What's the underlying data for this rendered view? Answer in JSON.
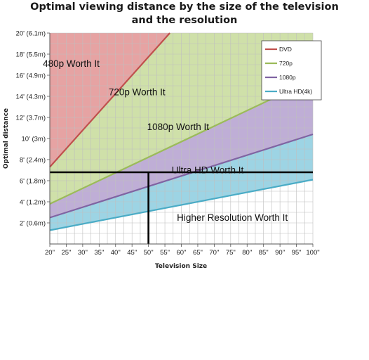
{
  "chart_data": {
    "type": "area",
    "title_line1": "Optimal viewing distance by the size of the television",
    "title_line2": "and the resolution",
    "xlabel": "Television Size",
    "ylabel": "Optimal distance",
    "xlim": [
      20,
      100
    ],
    "ylim": [
      0,
      20
    ],
    "x_ticks": [
      {
        "value": 20,
        "label": "20\""
      },
      {
        "value": 25,
        "label": "25\""
      },
      {
        "value": 30,
        "label": "30\""
      },
      {
        "value": 35,
        "label": "35\""
      },
      {
        "value": 40,
        "label": "40\""
      },
      {
        "value": 45,
        "label": "45\""
      },
      {
        "value": 50,
        "label": "50\""
      },
      {
        "value": 55,
        "label": "55\""
      },
      {
        "value": 60,
        "label": "60\""
      },
      {
        "value": 65,
        "label": "65\""
      },
      {
        "value": 70,
        "label": "70\""
      },
      {
        "value": 75,
        "label": "75\""
      },
      {
        "value": 80,
        "label": "80\""
      },
      {
        "value": 85,
        "label": "85\""
      },
      {
        "value": 90,
        "label": "90\""
      },
      {
        "value": 95,
        "label": "95\""
      },
      {
        "value": 100,
        "label": "100\""
      }
    ],
    "y_ticks": [
      {
        "value": 2,
        "label": "2' (0.6m)"
      },
      {
        "value": 4,
        "label": "4' (1.2m)"
      },
      {
        "value": 6,
        "label": "6' (1.8m)"
      },
      {
        "value": 8,
        "label": "8' (2.4m)"
      },
      {
        "value": 10,
        "label": "10' (3m)"
      },
      {
        "value": 12,
        "label": "12' (3.7m)"
      },
      {
        "value": 14,
        "label": "14' (4.3m)"
      },
      {
        "value": 16,
        "label": "16' (4.9m)"
      },
      {
        "value": 18,
        "label": "18' (5.5m)"
      },
      {
        "value": 20,
        "label": "20' (6.1m)"
      }
    ],
    "series": [
      {
        "name": "DVD",
        "color": "#c0504d",
        "fill": "#e6a3a3",
        "x": [
          20,
          56.5
        ],
        "y": [
          7.3,
          20
        ]
      },
      {
        "name": "720p",
        "color": "#9bbb59",
        "fill": "#cfe0a9",
        "x": [
          20,
          100
        ],
        "y": [
          3.8,
          15.6
        ]
      },
      {
        "name": "1080p",
        "color": "#8064a2",
        "fill": "#bfaed6",
        "x": [
          20,
          100
        ],
        "y": [
          2.5,
          10.4
        ]
      },
      {
        "name": "Ultra HD(4k)",
        "color": "#4bacc6",
        "fill": "#9dd4e4",
        "x": [
          20,
          100
        ],
        "y": [
          1.3,
          6.1
        ]
      }
    ],
    "region_labels": [
      {
        "text": "480p Worth It",
        "x": 26.5,
        "y": 16.8
      },
      {
        "text": "720p Worth It",
        "x": 46.5,
        "y": 14.1
      },
      {
        "text": "1080p Worth It",
        "x": 59,
        "y": 10.8
      },
      {
        "text": "Ultra HD Worth It",
        "x": 68,
        "y": 6.7
      },
      {
        "text": "Higher Resolution Worth It",
        "x": 75.5,
        "y": 2.2
      }
    ],
    "reference_lines": {
      "horizontal_y": 6.8,
      "vertical_x": 50
    },
    "grid": true,
    "legend": "top-right",
    "background": "#ffffff",
    "grid_color": "#bfbfbf",
    "axis_color": "#555555",
    "reference_color": "#000000"
  }
}
